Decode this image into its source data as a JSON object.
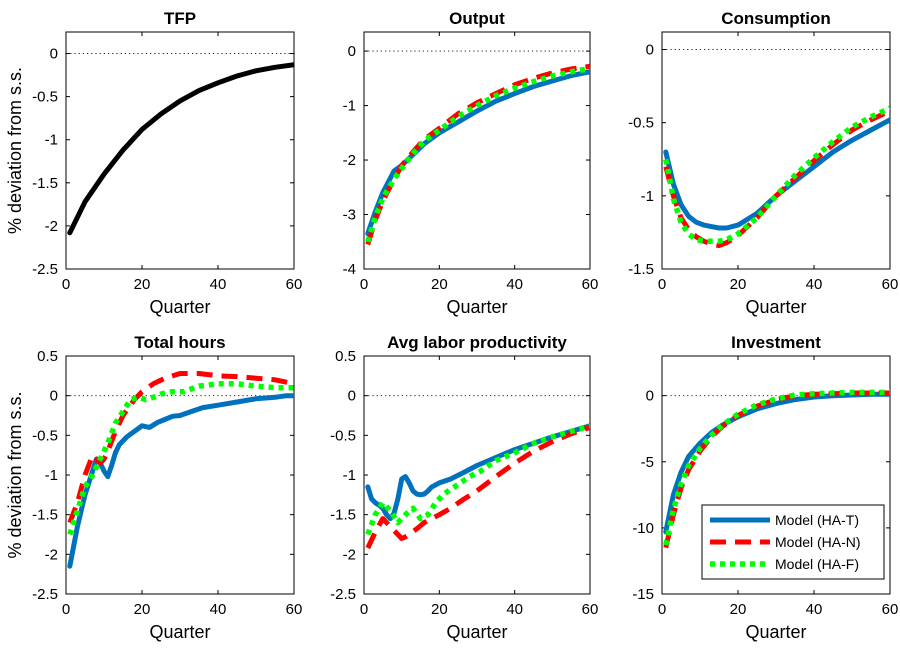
{
  "figure": {
    "ylabel": "% deviation from s.s.",
    "xlabel": "Quarter",
    "legend": {
      "placement": "inside-bottom-right of Investment panel",
      "entries": [
        {
          "name": "Model (HA-T)",
          "color": "#0072BD",
          "style": "solid"
        },
        {
          "name": "Model (HA-N)",
          "color": "#FF0000",
          "style": "dashed"
        },
        {
          "name": "Model (HA-F)",
          "color": "#00FF00",
          "style": "dotted"
        }
      ]
    },
    "zero_line": "dotted black at y=0"
  },
  "chart_data": [
    {
      "type": "line",
      "title": "TFP",
      "xlabel": "Quarter",
      "ylabel": "% deviation from s.s.",
      "xlim": [
        0,
        60
      ],
      "ylim": [
        -2.5,
        0.25
      ],
      "xticks": [
        "0",
        "20",
        "40",
        "60"
      ],
      "yticks": [
        "-2.5",
        "-2",
        "-1.5",
        "-1",
        "-0.5",
        "0"
      ],
      "ytick_values": [
        -2.5,
        -2,
        -1.5,
        -1,
        -0.5,
        0
      ],
      "series": [
        {
          "color": "#000000",
          "style": "solid",
          "x": [
            1,
            5,
            10,
            15,
            20,
            25,
            30,
            35,
            40,
            45,
            50,
            55,
            60
          ],
          "y": [
            -2.08,
            -1.72,
            -1.4,
            -1.12,
            -0.88,
            -0.7,
            -0.55,
            -0.43,
            -0.34,
            -0.26,
            -0.2,
            -0.16,
            -0.13
          ]
        }
      ]
    },
    {
      "type": "line",
      "title": "Output",
      "xlabel": "Quarter",
      "ylabel": "",
      "xlim": [
        0,
        60
      ],
      "ylim": [
        -4,
        0.35
      ],
      "xticks": [
        "0",
        "20",
        "40",
        "60"
      ],
      "yticks": [
        "-4",
        "-3",
        "-2",
        "-1",
        "0"
      ],
      "ytick_values": [
        -4,
        -3,
        -2,
        -1,
        0
      ],
      "series": [
        {
          "name": "Model (HA-T)",
          "color": "#0072BD",
          "style": "solid",
          "x": [
            1,
            3,
            5,
            8,
            10,
            13,
            16,
            20,
            25,
            30,
            35,
            40,
            45,
            50,
            55,
            60
          ],
          "y": [
            -3.35,
            -2.95,
            -2.6,
            -2.2,
            -2.1,
            -1.9,
            -1.7,
            -1.5,
            -1.3,
            -1.1,
            -0.92,
            -0.78,
            -0.65,
            -0.55,
            -0.45,
            -0.38
          ]
        },
        {
          "name": "Model (HA-N)",
          "color": "#FF0000",
          "style": "dashed",
          "x": [
            1,
            3,
            5,
            8,
            10,
            13,
            16,
            20,
            25,
            30,
            35,
            40,
            45,
            50,
            55,
            60
          ],
          "y": [
            -3.55,
            -3.1,
            -2.75,
            -2.35,
            -2.1,
            -1.85,
            -1.62,
            -1.42,
            -1.15,
            -0.95,
            -0.78,
            -0.62,
            -0.5,
            -0.4,
            -0.33,
            -0.28
          ]
        },
        {
          "name": "Model (HA-F)",
          "color": "#00FF00",
          "style": "dotted",
          "x": [
            1,
            3,
            5,
            8,
            10,
            13,
            16,
            20,
            25,
            30,
            35,
            40,
            45,
            50,
            55,
            60
          ],
          "y": [
            -3.5,
            -3.05,
            -2.7,
            -2.35,
            -2.15,
            -1.88,
            -1.65,
            -1.45,
            -1.2,
            -1.0,
            -0.82,
            -0.68,
            -0.56,
            -0.46,
            -0.38,
            -0.32
          ]
        }
      ]
    },
    {
      "type": "line",
      "title": "Consumption",
      "xlabel": "Quarter",
      "ylabel": "",
      "xlim": [
        0,
        60
      ],
      "ylim": [
        -1.5,
        0.12
      ],
      "xticks": [
        "0",
        "20",
        "40",
        "60"
      ],
      "yticks": [
        "-1.5",
        "-1",
        "-0.5",
        "0"
      ],
      "ytick_values": [
        -1.5,
        -1,
        -0.5,
        0
      ],
      "series": [
        {
          "name": "Model (HA-T)",
          "color": "#0072BD",
          "style": "solid",
          "x": [
            1,
            3,
            5,
            7,
            9,
            11,
            13,
            15,
            17,
            20,
            25,
            30,
            35,
            40,
            45,
            50,
            55,
            60
          ],
          "y": [
            -0.7,
            -0.92,
            -1.06,
            -1.14,
            -1.18,
            -1.2,
            -1.21,
            -1.22,
            -1.22,
            -1.2,
            -1.12,
            -1.0,
            -0.9,
            -0.8,
            -0.7,
            -0.62,
            -0.55,
            -0.48
          ]
        },
        {
          "name": "Model (HA-N)",
          "color": "#FF0000",
          "style": "dashed",
          "x": [
            1,
            3,
            5,
            7,
            9,
            11,
            13,
            15,
            17,
            20,
            25,
            30,
            35,
            40,
            45,
            50,
            55,
            60
          ],
          "y": [
            -0.8,
            -1.0,
            -1.15,
            -1.23,
            -1.28,
            -1.31,
            -1.33,
            -1.34,
            -1.32,
            -1.27,
            -1.15,
            -1.0,
            -0.88,
            -0.76,
            -0.65,
            -0.55,
            -0.48,
            -0.42
          ]
        },
        {
          "name": "Model (HA-F)",
          "color": "#00FF00",
          "style": "dotted",
          "x": [
            1,
            3,
            5,
            7,
            9,
            11,
            13,
            15,
            17,
            20,
            25,
            30,
            35,
            40,
            45,
            50,
            55,
            60
          ],
          "y": [
            -0.75,
            -1.02,
            -1.18,
            -1.26,
            -1.3,
            -1.31,
            -1.31,
            -1.31,
            -1.3,
            -1.26,
            -1.15,
            -1.0,
            -0.86,
            -0.74,
            -0.63,
            -0.53,
            -0.46,
            -0.4
          ]
        }
      ]
    },
    {
      "type": "line",
      "title": "Total hours",
      "xlabel": "Quarter",
      "ylabel": "% deviation from s.s.",
      "xlim": [
        0,
        60
      ],
      "ylim": [
        -2.5,
        0.5
      ],
      "xticks": [
        "0",
        "20",
        "40",
        "60"
      ],
      "yticks": [
        "-2.5",
        "-2",
        "-1.5",
        "-1",
        "-0.5",
        "0",
        "0.5"
      ],
      "ytick_values": [
        -2.5,
        -2,
        -1.5,
        -1,
        -0.5,
        0,
        0.5
      ],
      "series": [
        {
          "name": "Model (HA-T)",
          "color": "#0072BD",
          "style": "solid",
          "x": [
            1,
            3,
            5,
            7,
            8,
            9,
            10,
            11,
            12,
            13,
            14,
            16,
            18,
            20,
            22,
            24,
            26,
            28,
            30,
            33,
            36,
            40,
            45,
            50,
            55,
            58,
            60
          ],
          "y": [
            -2.15,
            -1.65,
            -1.25,
            -0.95,
            -0.8,
            -0.85,
            -0.95,
            -1.02,
            -0.88,
            -0.72,
            -0.62,
            -0.52,
            -0.45,
            -0.38,
            -0.4,
            -0.34,
            -0.3,
            -0.26,
            -0.25,
            -0.2,
            -0.15,
            -0.12,
            -0.08,
            -0.04,
            -0.02,
            0.0,
            0.0
          ]
        },
        {
          "name": "Model (HA-N)",
          "color": "#FF0000",
          "style": "dashed",
          "x": [
            1,
            3,
            5,
            7,
            9,
            10,
            11,
            13,
            15,
            18,
            20,
            23,
            26,
            30,
            35,
            40,
            45,
            50,
            55,
            60
          ],
          "y": [
            -1.6,
            -1.35,
            -1.0,
            -0.75,
            -0.85,
            -0.8,
            -0.7,
            -0.45,
            -0.25,
            -0.05,
            0.05,
            0.15,
            0.22,
            0.28,
            0.28,
            0.25,
            0.24,
            0.22,
            0.2,
            0.15
          ]
        },
        {
          "name": "Model (HA-F)",
          "color": "#00FF00",
          "style": "dotted",
          "x": [
            1,
            3,
            5,
            7,
            9,
            11,
            13,
            15,
            17,
            19,
            21,
            23,
            25,
            28,
            31,
            35,
            40,
            45,
            50,
            55,
            60
          ],
          "y": [
            -1.75,
            -1.45,
            -1.15,
            -1.0,
            -0.8,
            -0.6,
            -0.35,
            -0.2,
            -0.05,
            -0.02,
            -0.05,
            -0.02,
            0.02,
            0.05,
            0.05,
            0.12,
            0.15,
            0.15,
            0.12,
            0.1,
            0.1
          ]
        }
      ]
    },
    {
      "type": "line",
      "title": "Avg labor productivity",
      "xlabel": "Quarter",
      "ylabel": "",
      "xlim": [
        0,
        60
      ],
      "ylim": [
        -2.5,
        0.5
      ],
      "xticks": [
        "0",
        "20",
        "40",
        "60"
      ],
      "yticks": [
        "-2.5",
        "-2",
        "-1.5",
        "-1",
        "-0.5",
        "0",
        "0.5"
      ],
      "ytick_values": [
        -2.5,
        -2,
        -1.5,
        -1,
        -0.5,
        0,
        0.5
      ],
      "series": [
        {
          "name": "Model (HA-T)",
          "color": "#0072BD",
          "style": "solid",
          "x": [
            1,
            2,
            3,
            4,
            5,
            6,
            7,
            8,
            9,
            10,
            11,
            12,
            13,
            14,
            15,
            16,
            17,
            18,
            20,
            23,
            26,
            30,
            35,
            40,
            45,
            50,
            55,
            60
          ],
          "y": [
            -1.15,
            -1.3,
            -1.35,
            -1.38,
            -1.42,
            -1.5,
            -1.55,
            -1.48,
            -1.3,
            -1.05,
            -1.02,
            -1.1,
            -1.2,
            -1.24,
            -1.25,
            -1.24,
            -1.2,
            -1.15,
            -1.1,
            -1.05,
            -0.98,
            -0.88,
            -0.78,
            -0.68,
            -0.6,
            -0.52,
            -0.45,
            -0.38
          ]
        },
        {
          "name": "Model (HA-N)",
          "color": "#FF0000",
          "style": "dashed",
          "x": [
            1,
            3,
            5,
            7,
            9,
            10,
            11,
            12,
            14,
            16,
            18,
            20,
            23,
            26,
            30,
            35,
            40,
            45,
            50,
            55,
            60
          ],
          "y": [
            -1.92,
            -1.72,
            -1.55,
            -1.65,
            -1.75,
            -1.8,
            -1.78,
            -1.75,
            -1.68,
            -1.6,
            -1.55,
            -1.5,
            -1.42,
            -1.32,
            -1.2,
            -1.02,
            -0.85,
            -0.7,
            -0.58,
            -0.48,
            -0.4
          ]
        },
        {
          "name": "Model (HA-F)",
          "color": "#00FF00",
          "style": "dotted",
          "x": [
            1,
            3,
            5,
            7,
            9,
            11,
            13,
            15,
            17,
            19,
            21,
            23,
            25,
            28,
            31,
            35,
            40,
            45,
            50,
            55,
            60
          ],
          "y": [
            -1.75,
            -1.5,
            -1.35,
            -1.45,
            -1.6,
            -1.5,
            -1.42,
            -1.55,
            -1.5,
            -1.35,
            -1.25,
            -1.18,
            -1.12,
            -1.02,
            -0.95,
            -0.82,
            -0.72,
            -0.6,
            -0.52,
            -0.45,
            -0.38
          ]
        }
      ]
    },
    {
      "type": "line",
      "title": "Investment",
      "xlabel": "Quarter",
      "ylabel": "",
      "xlim": [
        0,
        60
      ],
      "ylim": [
        -15,
        3
      ],
      "xticks": [
        "0",
        "20",
        "40",
        "60"
      ],
      "yticks": [
        "-15",
        "-10",
        "-5",
        "0"
      ],
      "ytick_values": [
        -15,
        -10,
        -5,
        0
      ],
      "series": [
        {
          "name": "Model (HA-T)",
          "color": "#0072BD",
          "style": "solid",
          "x": [
            1,
            3,
            5,
            7,
            10,
            13,
            16,
            20,
            25,
            30,
            35,
            40,
            45,
            50,
            55,
            60
          ],
          "y": [
            -10.3,
            -7.5,
            -5.8,
            -4.6,
            -3.6,
            -2.8,
            -2.2,
            -1.6,
            -1.0,
            -0.6,
            -0.3,
            -0.1,
            0.0,
            0.05,
            0.1,
            0.1
          ]
        },
        {
          "name": "Model (HA-N)",
          "color": "#FF0000",
          "style": "dashed",
          "x": [
            1,
            3,
            5,
            7,
            10,
            13,
            16,
            20,
            25,
            30,
            35,
            40,
            45,
            50,
            55,
            60
          ],
          "y": [
            -11.5,
            -9.0,
            -7.0,
            -5.6,
            -4.2,
            -3.1,
            -2.3,
            -1.5,
            -0.8,
            -0.3,
            0.0,
            0.1,
            0.15,
            0.2,
            0.2,
            0.2
          ]
        },
        {
          "name": "Model (HA-F)",
          "color": "#00FF00",
          "style": "dotted",
          "x": [
            1,
            3,
            5,
            7,
            10,
            13,
            16,
            20,
            25,
            30,
            35,
            40,
            45,
            50,
            55,
            60
          ],
          "y": [
            -11.3,
            -8.6,
            -6.7,
            -5.3,
            -4.0,
            -3.0,
            -2.2,
            -1.4,
            -0.7,
            -0.25,
            0.05,
            0.15,
            0.2,
            0.25,
            0.25,
            0.25
          ]
        }
      ]
    }
  ]
}
